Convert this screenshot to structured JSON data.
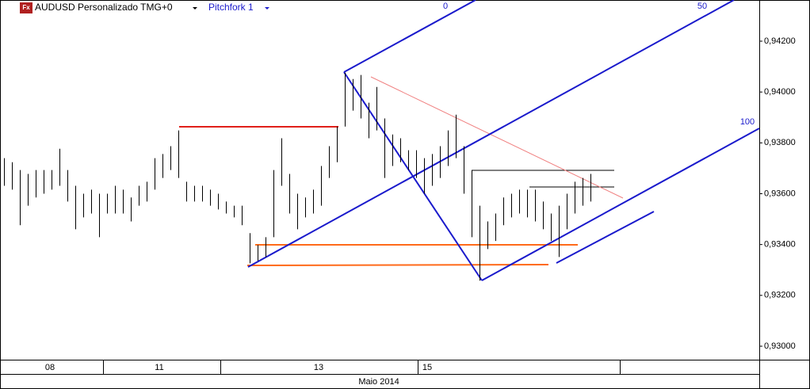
{
  "chart_data": {
    "type": "hilo",
    "header": {
      "icon": "Fx",
      "symbol": "AUDUSD Personalizado TMG+0",
      "tool": "Pitchfork 1"
    },
    "annotations": [
      "0",
      "50",
      "100"
    ],
    "color": "#000000",
    "high": [
      0.9374,
      0.93724,
      0.93693,
      0.93678,
      0.93693,
      0.93693,
      0.93693,
      0.93777,
      0.93693,
      0.93631,
      0.936,
      0.93616,
      0.936,
      0.936,
      0.93631,
      0.93616,
      0.93585,
      0.93631,
      0.93647,
      0.9374,
      0.93756,
      0.93787,
      0.93849,
      0.93647,
      0.93631,
      0.93631,
      0.93616,
      0.936,
      0.93569,
      0.93553,
      0.93553,
      0.93445,
      0.93398,
      0.93429,
      0.93693,
      0.93818,
      0.93678,
      0.936,
      0.93585,
      0.93616,
      0.93709,
      0.93787,
      0.93864,
      0.94076,
      0.94051,
      0.94067,
      0.93958,
      0.9402,
      0.93896,
      0.93833,
      0.93818,
      0.93771,
      0.93771,
      0.9374,
      0.93756,
      0.93787,
      0.93849,
      0.93911,
      0.93787,
      0.93693,
      0.93553,
      0.93491,
      0.93522,
      0.93585,
      0.936,
      0.93616,
      0.93616,
      0.93616,
      0.93569,
      0.93522,
      0.93553,
      0.936,
      0.93647,
      0.93662,
      0.93678
    ],
    "low": [
      0.93631,
      0.93616,
      0.93476,
      0.93553,
      0.93585,
      0.936,
      0.93616,
      0.93631,
      0.93569,
      0.9346,
      0.93507,
      0.93522,
      0.93429,
      0.93522,
      0.93522,
      0.93522,
      0.93491,
      0.93553,
      0.93569,
      0.93616,
      0.93662,
      0.93693,
      0.93662,
      0.93569,
      0.93569,
      0.93569,
      0.93553,
      0.93538,
      0.93522,
      0.93507,
      0.93476,
      0.93326,
      0.93336,
      0.93351,
      0.93429,
      0.93631,
      0.93522,
      0.9346,
      0.93507,
      0.93522,
      0.93553,
      0.93662,
      0.93724,
      0.93864,
      0.93927,
      0.93896,
      0.93818,
      0.93849,
      0.93662,
      0.93709,
      0.93724,
      0.93693,
      0.93662,
      0.936,
      0.93631,
      0.93662,
      0.93709,
      0.9374,
      0.936,
      0.93429,
      0.93258,
      0.93382,
      0.93414,
      0.93476,
      0.93507,
      0.93522,
      0.93507,
      0.93491,
      0.9346,
      0.93414,
      0.93351,
      0.9346,
      0.93522,
      0.93553,
      0.93569
    ],
    "xlim": [
      -0.5,
      95.3
    ],
    "xticks": [
      {
        "value": 5.8,
        "label": "08"
      },
      {
        "value": 19.6,
        "label": "11"
      },
      {
        "value": 39.7,
        "label": "13"
      },
      {
        "value": 53.4,
        "label": "15"
      }
    ],
    "xlabel": "Maio 2014",
    "ylim": [
      0.92947,
      0.94362
    ],
    "yticks": [
      {
        "value": 0.93,
        "label": "0,93000"
      },
      {
        "value": 0.932,
        "label": "0,93200"
      },
      {
        "value": 0.934,
        "label": "0,93400"
      },
      {
        "value": 0.936,
        "label": "0,93600"
      },
      {
        "value": 0.938,
        "label": "0,93800"
      },
      {
        "value": 0.94,
        "label": "0,94000"
      },
      {
        "value": 0.942,
        "label": "0,94200"
      }
    ]
  }
}
